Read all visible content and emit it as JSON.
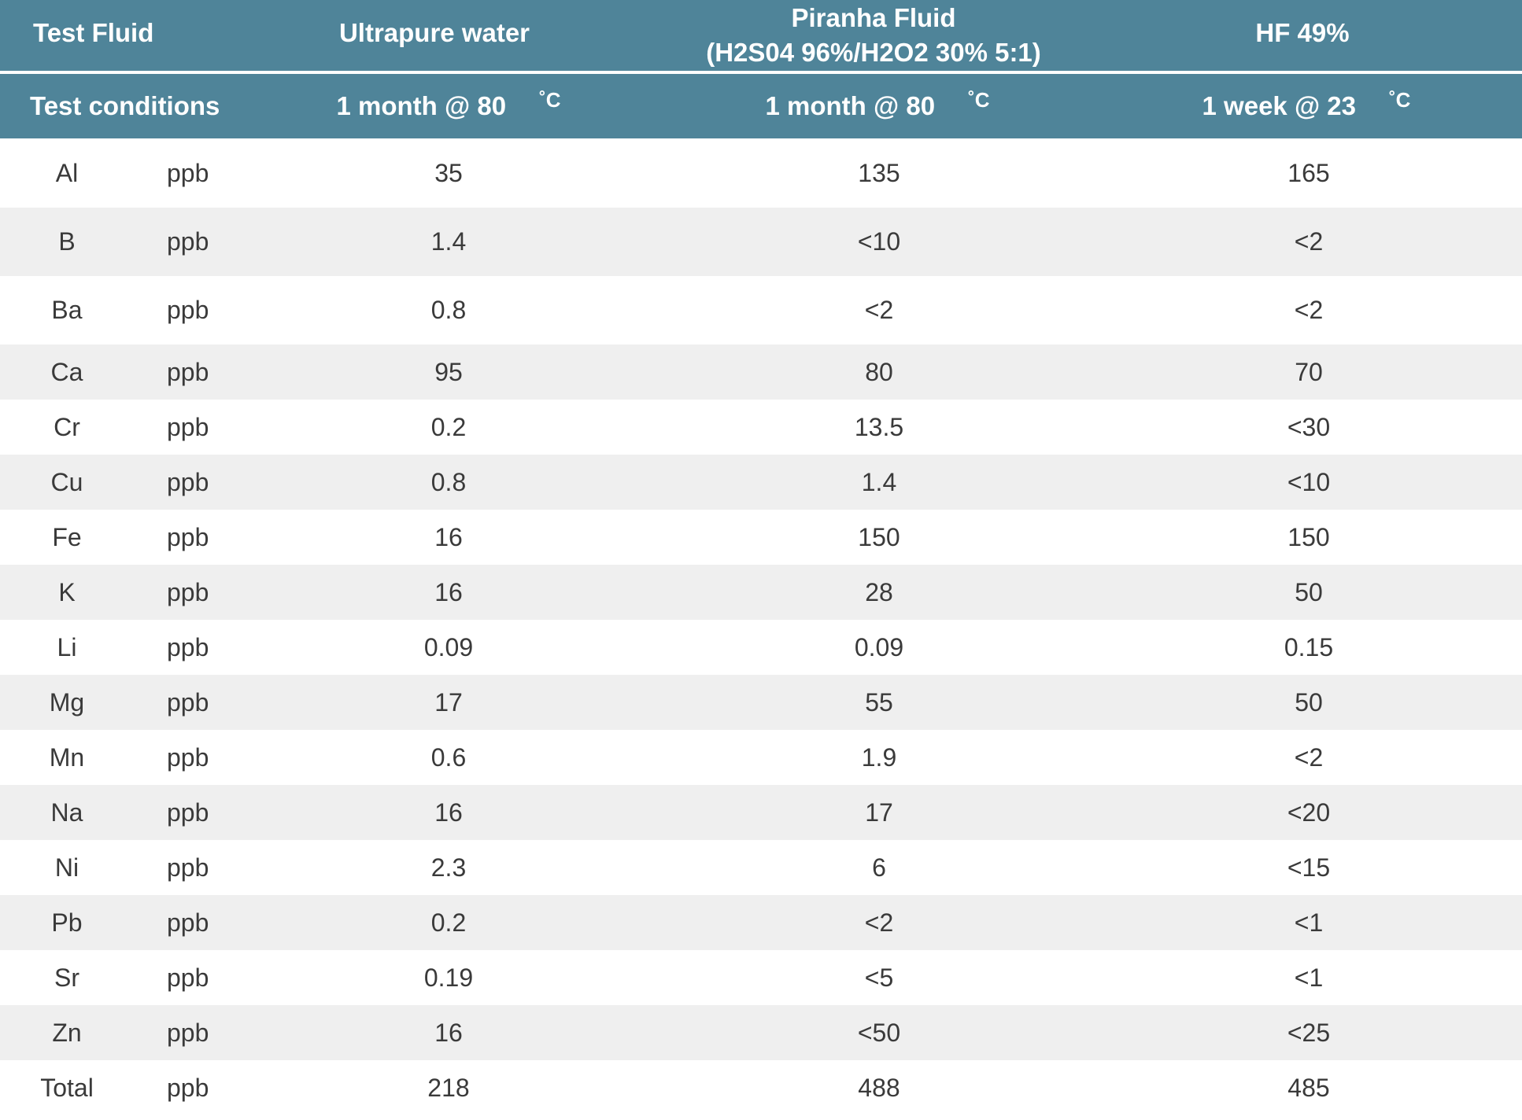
{
  "header": {
    "test_fluid_label": "Test Fluid",
    "fluids": [
      {
        "line1": "Ultrapure water",
        "line2": ""
      },
      {
        "line1": "Piranha Fluid",
        "line2": "(H2S04 96%/H2O2 30% 5:1)"
      },
      {
        "line1": "HF 49%",
        "line2": ""
      }
    ],
    "test_conditions_label": "Test conditions",
    "conditions": [
      {
        "text": "1 month @ 80",
        "unit": "˚C"
      },
      {
        "text": "1 month @ 80",
        "unit": "˚C"
      },
      {
        "text": "1 week @ 23",
        "unit": "˚C"
      }
    ]
  },
  "rows": [
    {
      "element": "Al",
      "unit": "ppb",
      "values": [
        "35",
        "135",
        "165"
      ]
    },
    {
      "element": "B",
      "unit": "ppb",
      "values": [
        "1.4",
        "<10",
        "<2"
      ]
    },
    {
      "element": "Ba",
      "unit": "ppb",
      "values": [
        "0.8",
        "<2",
        "<2"
      ]
    },
    {
      "element": "Ca",
      "unit": "ppb",
      "values": [
        "95",
        "80",
        "70"
      ]
    },
    {
      "element": "Cr",
      "unit": "ppb",
      "values": [
        "0.2",
        "13.5",
        "<30"
      ]
    },
    {
      "element": "Cu",
      "unit": "ppb",
      "values": [
        "0.8",
        "1.4",
        "<10"
      ]
    },
    {
      "element": "Fe",
      "unit": "ppb",
      "values": [
        "16",
        "150",
        "150"
      ]
    },
    {
      "element": "K",
      "unit": "ppb",
      "values": [
        "16",
        "28",
        "50"
      ]
    },
    {
      "element": "Li",
      "unit": "ppb",
      "values": [
        "0.09",
        "0.09",
        "0.15"
      ]
    },
    {
      "element": "Mg",
      "unit": "ppb",
      "values": [
        "17",
        "55",
        "50"
      ]
    },
    {
      "element": "Mn",
      "unit": "ppb",
      "values": [
        "0.6",
        "1.9",
        "<2"
      ]
    },
    {
      "element": "Na",
      "unit": "ppb",
      "values": [
        "16",
        "17",
        "<20"
      ]
    },
    {
      "element": "Ni",
      "unit": "ppb",
      "values": [
        "2.3",
        "6",
        "<15"
      ]
    },
    {
      "element": "Pb",
      "unit": "ppb",
      "values": [
        "0.2",
        "<2",
        "<1"
      ]
    },
    {
      "element": "Sr",
      "unit": "ppb",
      "values": [
        "0.19",
        "<5",
        "<1"
      ]
    },
    {
      "element": "Zn",
      "unit": "ppb",
      "values": [
        "16",
        "<50",
        "<25"
      ]
    },
    {
      "element": "Total",
      "unit": "ppb",
      "values": [
        "218",
        "488",
        "485"
      ]
    }
  ]
}
